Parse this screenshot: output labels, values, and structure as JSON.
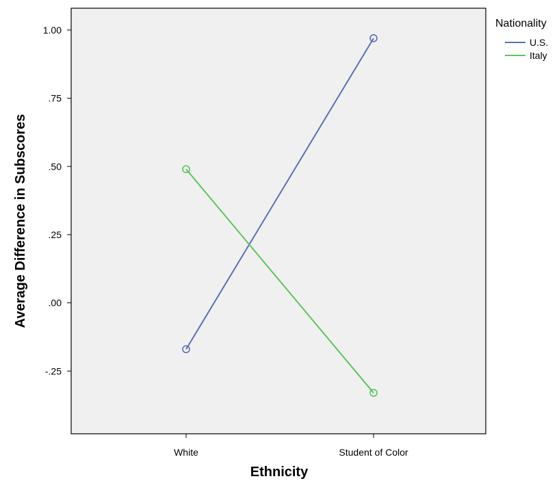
{
  "chart_data": {
    "type": "line",
    "title": "",
    "xlabel": "Ethnicity",
    "ylabel": "Average Difference in Subscores",
    "categories": [
      "White",
      "Student of Color"
    ],
    "ylim": [
      -0.48,
      1.08
    ],
    "yticks": [
      1.0,
      0.75,
      0.5,
      0.25,
      0.0,
      -0.25
    ],
    "ytick_labels": [
      "1.00",
      ".75",
      ".50",
      ".25",
      ".00",
      "-.25"
    ],
    "grid": false,
    "legend_title": "Nationality",
    "legend_position": "top-right (outside plot)",
    "plot_background": "#f0f0f0",
    "series": [
      {
        "name": "U.S.",
        "color": "#5b6fb5",
        "values": [
          -0.17,
          0.97
        ]
      },
      {
        "name": "Italy",
        "color": "#5cc45a",
        "values": [
          0.49,
          -0.33
        ]
      }
    ]
  }
}
